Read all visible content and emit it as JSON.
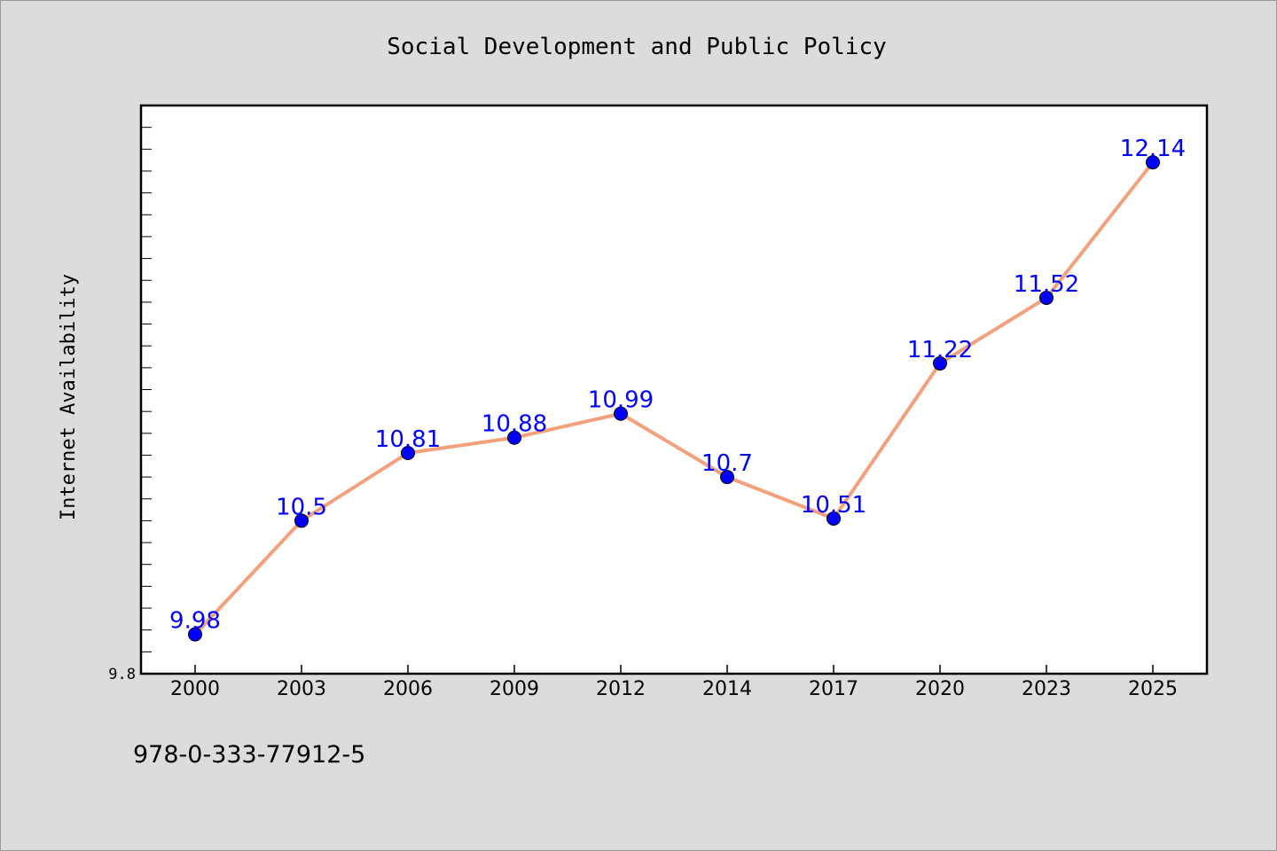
{
  "chart_data": {
    "type": "line",
    "title": "Social Development and Public Policy",
    "xlabel": "",
    "ylabel": "Internet Availability",
    "categories": [
      "2000",
      "2003",
      "2006",
      "2009",
      "2012",
      "2014",
      "2017",
      "2020",
      "2023",
      "2025"
    ],
    "series": [
      {
        "values": [
          9.98,
          10.5,
          10.81,
          10.88,
          10.99,
          10.7,
          10.51,
          11.22,
          11.52,
          12.14
        ],
        "labels": [
          "9.98",
          "10.5",
          "10.81",
          "10.88",
          "10.99",
          "10.7",
          "10.51",
          "11.22",
          "11.52",
          "12.14"
        ],
        "line_color": "#f4a07c",
        "marker_color": "#0000ff",
        "label_color": "#0000ff"
      }
    ],
    "ylim": [
      9.8,
      12.4
    ],
    "y_tick_labels": [
      {
        "value": 9.8,
        "label": "9.8"
      }
    ],
    "y_minor_step": 0.1,
    "grid": false,
    "legend": "none"
  },
  "footer": {
    "isbn": "978-0-333-77912-5"
  },
  "colors": {
    "background": "#dcdcdc",
    "plot_background": "#ffffff",
    "axis": "#000000"
  }
}
